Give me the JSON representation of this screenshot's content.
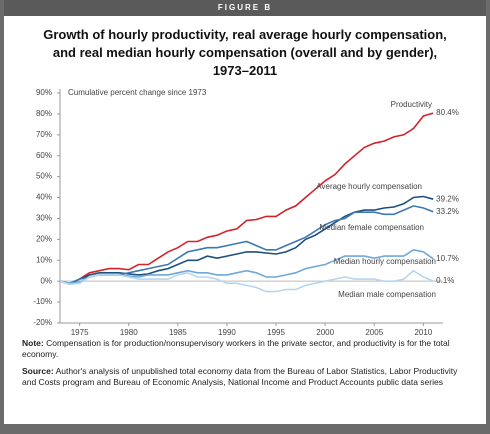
{
  "header": {
    "figure": "FIGURE B"
  },
  "chart_data": {
    "type": "line",
    "title": "Growth of hourly productivity, real average hourly compensation, and real median hourly compensation (overall and by gender), 1973–2011",
    "y_label": "Cumulative percent change since 1973",
    "x": [
      1973,
      1974,
      1975,
      1976,
      1977,
      1978,
      1979,
      1980,
      1981,
      1982,
      1983,
      1984,
      1985,
      1986,
      1987,
      1988,
      1989,
      1990,
      1991,
      1992,
      1993,
      1994,
      1995,
      1996,
      1997,
      1998,
      1999,
      2000,
      2001,
      2002,
      2003,
      2004,
      2005,
      2006,
      2007,
      2008,
      2009,
      2010,
      2011
    ],
    "xlim": [
      1973,
      2012
    ],
    "xticks": [
      1975,
      1980,
      1985,
      1990,
      1995,
      2000,
      2005,
      2010
    ],
    "ylim": [
      -20,
      90
    ],
    "yticks": [
      {
        "value": -20,
        "label": "-20%"
      },
      {
        "value": -10,
        "label": "-10%"
      },
      {
        "value": 0,
        "label": "0%"
      },
      {
        "value": 10,
        "label": "10%"
      },
      {
        "value": 20,
        "label": "20%"
      },
      {
        "value": 30,
        "label": "30%"
      },
      {
        "value": 40,
        "label": "40%"
      },
      {
        "value": 50,
        "label": "50%"
      },
      {
        "value": 60,
        "label": "60%"
      },
      {
        "value": 70,
        "label": "70%"
      },
      {
        "value": 80,
        "label": "80%"
      },
      {
        "value": 90,
        "label": "90%"
      }
    ],
    "series": [
      {
        "name": "Productivity",
        "color": "#d2232a",
        "values": [
          0,
          -1.5,
          1,
          4,
          5,
          6,
          6,
          5.5,
          8,
          8,
          11,
          14,
          16,
          19,
          19,
          21,
          22,
          24,
          25,
          29,
          29.5,
          31,
          31,
          34,
          36,
          40,
          44,
          48,
          51,
          56,
          60,
          64,
          66,
          67,
          69,
          70,
          73,
          79,
          80.4
        ],
        "value_labels": [
          null,
          null,
          null,
          null,
          null,
          null,
          null,
          null,
          null,
          null,
          null,
          null,
          null,
          null,
          null,
          null,
          null,
          null,
          null,
          null,
          null,
          null,
          null,
          null,
          null,
          null,
          null,
          null,
          null,
          null,
          null,
          null,
          null,
          null,
          null,
          null,
          null,
          null,
          "80.4%"
        ]
      },
      {
        "name": "Average hourly compensation",
        "color": "#1d4f7c",
        "values": [
          0,
          -1,
          1,
          3,
          4,
          4,
          4,
          3.5,
          3,
          3.5,
          5,
          6,
          8,
          10,
          10,
          12,
          11,
          12,
          13,
          14,
          14,
          13.5,
          13,
          14,
          16,
          20,
          22,
          25,
          28,
          31,
          33,
          34,
          34,
          35,
          35.5,
          37,
          40,
          40.5,
          39.2
        ],
        "value_labels": [
          null,
          null,
          null,
          null,
          null,
          null,
          null,
          null,
          null,
          null,
          null,
          null,
          null,
          null,
          null,
          null,
          null,
          null,
          null,
          null,
          null,
          null,
          null,
          null,
          null,
          null,
          null,
          null,
          null,
          null,
          null,
          null,
          null,
          null,
          null,
          null,
          null,
          null,
          "39.2%"
        ]
      },
      {
        "name": "Median female compensation",
        "color": "#3b78b4",
        "values": [
          0,
          -1,
          1,
          2,
          3,
          3,
          3,
          4,
          5,
          6,
          7,
          8,
          11,
          14,
          15,
          16,
          16,
          17,
          18,
          19,
          17,
          15,
          15,
          17,
          19,
          21,
          24,
          27,
          29,
          30,
          33,
          33,
          33,
          32,
          32,
          34,
          36,
          35,
          33.2
        ],
        "value_labels": [
          null,
          null,
          null,
          null,
          null,
          null,
          null,
          null,
          null,
          null,
          null,
          null,
          null,
          null,
          null,
          null,
          null,
          null,
          null,
          null,
          null,
          null,
          null,
          null,
          null,
          null,
          null,
          null,
          null,
          null,
          null,
          null,
          null,
          null,
          null,
          null,
          null,
          null,
          "33.2%"
        ]
      },
      {
        "name": "Median hourly compensation",
        "color": "#6fa8d8",
        "values": [
          0,
          -1,
          -0.5,
          2,
          3,
          3,
          3,
          2.5,
          2,
          3,
          3,
          3,
          4,
          5,
          4,
          4,
          3,
          3,
          4,
          5,
          4,
          2,
          2,
          3,
          4,
          6,
          7,
          8,
          10,
          12,
          12,
          12,
          11,
          12,
          12,
          12,
          15,
          14,
          10.7
        ],
        "value_labels": [
          null,
          null,
          null,
          null,
          null,
          null,
          null,
          null,
          null,
          null,
          null,
          null,
          null,
          null,
          null,
          null,
          null,
          null,
          null,
          null,
          null,
          null,
          null,
          null,
          null,
          null,
          null,
          null,
          null,
          null,
          null,
          null,
          null,
          null,
          null,
          null,
          null,
          null,
          "10.7%"
        ]
      },
      {
        "name": "Median male compensation",
        "color": "#b6d6ef",
        "values": [
          0,
          -1.5,
          -1,
          2,
          3,
          3,
          3,
          2,
          1,
          1,
          1,
          1,
          3,
          4,
          2,
          2,
          1,
          -1,
          -1,
          -2,
          -3,
          -5,
          -5,
          -4,
          -4,
          -2,
          -1,
          0,
          1,
          2,
          1,
          1,
          1,
          0,
          0,
          1,
          5,
          2,
          0.1
        ],
        "value_labels": [
          null,
          null,
          null,
          null,
          null,
          null,
          null,
          null,
          null,
          null,
          null,
          null,
          null,
          null,
          null,
          null,
          null,
          null,
          null,
          null,
          null,
          null,
          null,
          null,
          null,
          null,
          null,
          null,
          null,
          null,
          null,
          null,
          null,
          null,
          null,
          null,
          null,
          null,
          "0.1%"
        ]
      }
    ]
  },
  "notes": [
    {
      "label": "Note:",
      "text": "Compensation is for production/nonsupervisory workers in the private sector, and productivity is for the total economy."
    },
    {
      "label": "Source:",
      "text": "Author's analysis of unpublished total economy data from the Bureau of Labor Statistics, Labor Productivity and Costs program and Bureau of Economic Analysis, National Income and Product Accounts public data series"
    }
  ]
}
